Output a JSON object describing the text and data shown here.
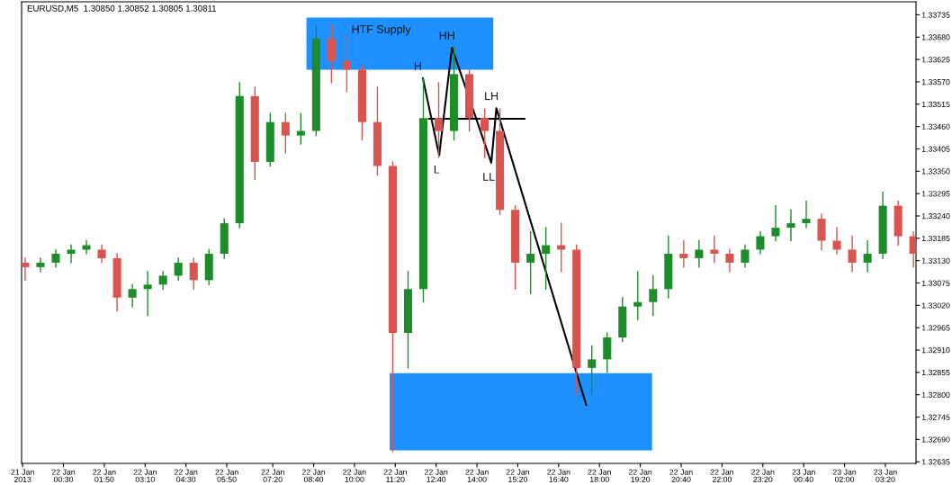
{
  "chart_data": {
    "type": "candlestick",
    "title": "EURUSD,M5  1.30850 1.30852 1.30805 1.30811",
    "x": [
      "2013-01-21T23:15",
      "2013-01-21T23:45",
      "2013-01-22T00:15",
      "2013-01-22T00:45",
      "2013-01-22T01:15",
      "2013-01-22T01:45",
      "2013-01-22T02:15",
      "2013-01-22T02:45",
      "2013-01-22T03:15",
      "2013-01-22T03:45",
      "2013-01-22T04:15",
      "2013-01-22T04:45",
      "2013-01-22T05:15",
      "2013-01-22T05:45",
      "2013-01-22T06:15",
      "2013-01-22T06:45",
      "2013-01-22T07:15",
      "2013-01-22T07:45",
      "2013-01-22T08:15",
      "2013-01-22T08:45",
      "2013-01-22T09:15",
      "2013-01-22T09:45",
      "2013-01-22T10:15",
      "2013-01-22T10:45",
      "2013-01-22T11:15",
      "2013-01-22T11:45",
      "2013-01-22T12:15",
      "2013-01-22T12:45",
      "2013-01-22T13:15",
      "2013-01-22T13:45",
      "2013-01-22T14:15",
      "2013-01-22T14:45",
      "2013-01-22T15:15",
      "2013-01-22T15:45",
      "2013-01-22T16:15",
      "2013-01-22T16:45",
      "2013-01-22T17:15",
      "2013-01-22T17:45",
      "2013-01-22T18:15",
      "2013-01-22T18:45",
      "2013-01-22T19:15",
      "2013-01-22T19:45",
      "2013-01-22T20:15",
      "2013-01-22T20:45",
      "2013-01-22T21:15",
      "2013-01-22T21:45",
      "2013-01-22T22:15",
      "2013-01-22T22:45",
      "2013-01-22T23:15",
      "2013-01-22T23:45",
      "2013-01-23T00:15",
      "2013-01-23T00:45",
      "2013-01-23T01:15",
      "2013-01-23T01:45",
      "2013-01-23T02:15",
      "2013-01-23T02:45",
      "2013-01-23T03:15",
      "2013-01-23T03:45",
      "2013-01-23T04:15"
    ],
    "ohlc": [
      [
        1.33125,
        1.33136,
        1.33082,
        1.33114
      ],
      [
        1.33114,
        1.33136,
        1.33103,
        1.33125
      ],
      [
        1.33125,
        1.33157,
        1.33114,
        1.33147
      ],
      [
        1.33147,
        1.33168,
        1.33125,
        1.33157
      ],
      [
        1.33157,
        1.33179,
        1.33147,
        1.33168
      ],
      [
        1.33157,
        1.33168,
        1.33125,
        1.33136
      ],
      [
        1.33136,
        1.33147,
        1.33006,
        1.33039
      ],
      [
        1.33039,
        1.33071,
        1.33017,
        1.3306
      ],
      [
        1.3306,
        1.33103,
        1.32995,
        1.33071
      ],
      [
        1.33071,
        1.33103,
        1.3306,
        1.33093
      ],
      [
        1.33093,
        1.33136,
        1.33082,
        1.33125
      ],
      [
        1.33125,
        1.33136,
        1.3306,
        1.33082
      ],
      [
        1.33082,
        1.33157,
        1.33071,
        1.33147
      ],
      [
        1.33147,
        1.33233,
        1.33136,
        1.33222
      ],
      [
        1.33222,
        1.33568,
        1.33211,
        1.33535
      ],
      [
        1.33535,
        1.33557,
        1.3333,
        1.33373
      ],
      [
        1.33373,
        1.33492,
        1.33363,
        1.33471
      ],
      [
        1.33471,
        1.33492,
        1.33395,
        1.33438
      ],
      [
        1.33438,
        1.33492,
        1.33417,
        1.33449
      ],
      [
        1.33449,
        1.33708,
        1.33438,
        1.33676
      ],
      [
        1.33676,
        1.33708,
        1.33568,
        1.33622
      ],
      [
        1.33622,
        1.33687,
        1.33546,
        1.336
      ],
      [
        1.336,
        1.33611,
        1.33427,
        1.33471
      ],
      [
        1.33471,
        1.33557,
        1.33341,
        1.33363
      ],
      [
        1.33363,
        1.33373,
        1.32661,
        1.32952
      ],
      [
        1.32952,
        1.33103,
        1.32866,
        1.3306
      ],
      [
        1.3306,
        1.33579,
        1.33028,
        1.33481
      ],
      [
        1.33481,
        1.33568,
        1.33384,
        1.33449
      ],
      [
        1.33449,
        1.33654,
        1.33427,
        1.33589
      ],
      [
        1.33589,
        1.336,
        1.33449,
        1.33481
      ],
      [
        1.33481,
        1.33503,
        1.33384,
        1.33449
      ],
      [
        1.33449,
        1.33503,
        1.33244,
        1.33255
      ],
      [
        1.33255,
        1.33265,
        1.3306,
        1.33125
      ],
      [
        1.33125,
        1.33201,
        1.33049,
        1.33147
      ],
      [
        1.33147,
        1.33211,
        1.3306,
        1.33168
      ],
      [
        1.33168,
        1.33222,
        1.33103,
        1.33157
      ],
      [
        1.33157,
        1.33168,
        1.32801,
        1.32866
      ],
      [
        1.32866,
        1.3292,
        1.32801,
        1.32887
      ],
      [
        1.32887,
        1.32952,
        1.32855,
        1.32941
      ],
      [
        1.32941,
        1.33039,
        1.32931,
        1.33017
      ],
      [
        1.33017,
        1.33103,
        1.32985,
        1.33028
      ],
      [
        1.33028,
        1.33093,
        1.32995,
        1.3306
      ],
      [
        1.3306,
        1.3319,
        1.33039,
        1.33147
      ],
      [
        1.33147,
        1.33179,
        1.33114,
        1.33136
      ],
      [
        1.33136,
        1.33179,
        1.33114,
        1.33157
      ],
      [
        1.33157,
        1.3319,
        1.33125,
        1.33147
      ],
      [
        1.33147,
        1.33157,
        1.33103,
        1.33125
      ],
      [
        1.33125,
        1.33168,
        1.33114,
        1.33157
      ],
      [
        1.33157,
        1.33201,
        1.33147,
        1.3319
      ],
      [
        1.3319,
        1.33265,
        1.33179,
        1.33211
      ],
      [
        1.33211,
        1.33255,
        1.33179,
        1.33222
      ],
      [
        1.33222,
        1.33276,
        1.33211,
        1.33233
      ],
      [
        1.33233,
        1.33244,
        1.33157,
        1.33179
      ],
      [
        1.33179,
        1.33211,
        1.33147,
        1.33157
      ],
      [
        1.33157,
        1.3319,
        1.33103,
        1.33125
      ],
      [
        1.33125,
        1.33179,
        1.33103,
        1.33147
      ],
      [
        1.33147,
        1.33298,
        1.33136,
        1.33265
      ],
      [
        1.33265,
        1.33276,
        1.33168,
        1.3319
      ],
      [
        1.3319,
        1.33201,
        1.33114,
        1.33147
      ]
    ],
    "colors": [
      "#d9534f",
      "#1e8c2a",
      "#1e8c2a",
      "#1e8c2a",
      "#1e8c2a",
      "#d9534f",
      "#d9534f",
      "#1e8c2a",
      "#1e8c2a",
      "#1e8c2a",
      "#1e8c2a",
      "#d9534f",
      "#1e8c2a",
      "#1e8c2a",
      "#1e8c2a",
      "#d9534f",
      "#1e8c2a",
      "#d9534f",
      "#1e8c2a",
      "#1e8c2a",
      "#d9534f",
      "#d9534f",
      "#d9534f",
      "#d9534f",
      "#d9534f",
      "#1e8c2a",
      "#1e8c2a",
      "#d9534f",
      "#1e8c2a",
      "#d9534f",
      "#d9534f",
      "#d9534f",
      "#d9534f",
      "#1e8c2a",
      "#1e8c2a",
      "#d9534f",
      "#d9534f",
      "#1e8c2a",
      "#1e8c2a",
      "#1e8c2a",
      "#1e8c2a",
      "#1e8c2a",
      "#1e8c2a",
      "#d9534f",
      "#1e8c2a",
      "#d9534f",
      "#d9534f",
      "#1e8c2a",
      "#1e8c2a",
      "#1e8c2a",
      "#1e8c2a",
      "#1e8c2a",
      "#d9534f",
      "#d9534f",
      "#d9534f",
      "#1e8c2a",
      "#1e8c2a",
      "#d9534f",
      "#d9534f"
    ],
    "series": [
      {
        "type": "line",
        "color": "#1e90ff",
        "x": [
          "2013-01-22T08:26",
          "2013-01-22T14:32"
        ],
        "values": [
          null,
          null
        ],
        "lower": [
          1.336,
          1.336
        ],
        "upper": [
          1.33728,
          1.33728
        ]
      },
      {
        "type": "line",
        "color": "#1e90ff",
        "x": [
          "2013-01-22T11:09",
          "2013-01-22T19:43"
        ],
        "values": [
          null,
          null
        ],
        "lower": [
          1.32663,
          1.32663
        ],
        "upper": [
          1.32853,
          1.32853
        ]
      },
      {
        "type": "line",
        "color": "#000000",
        "x": [
          "2013-01-22T12:14",
          "2013-01-22T12:46",
          "2013-01-22T13:11",
          "2013-01-22T14:28",
          "2013-01-22T14:38",
          "2013-01-22T17:34"
        ],
        "values": [
          1.33579,
          1.33389,
          1.33654,
          1.33371,
          1.33505,
          1.32775
        ]
      },
      {
        "type": "line",
        "color": "#000000",
        "x": [
          "2013-01-22T12:26",
          "2013-01-22T15:33"
        ],
        "values": [
          1.33479,
          1.33479
        ]
      }
    ],
    "annotations": [
      "HTF Supply",
      {
        "text": "HH",
        "x": "2013-01-22T13:11",
        "y": 1.33654
      },
      {
        "text": "H",
        "x": "2013-01-22T12:14",
        "y": 1.33579
      },
      {
        "text": "L",
        "x": "2013-01-22T12:46",
        "y": 1.33389
      },
      {
        "text": "LL",
        "x": "2013-01-22T14:28",
        "y": 1.33371
      },
      {
        "text": "LH",
        "x": "2013-01-22T14:38",
        "y": 1.33505
      }
    ],
    "xlim": [
      "2013-01-21T23:08",
      "2013-01-23T04:20"
    ],
    "xticks": [
      {
        "value": "2013-01-21T23:10",
        "label": "21 Jan 2013"
      },
      {
        "value": "2013-01-22T00:30",
        "label": "22 Jan 00:30"
      },
      {
        "value": "2013-01-22T01:50",
        "label": "22 Jan 01:50"
      },
      {
        "value": "2013-01-22T03:10",
        "label": "22 Jan 03:10"
      },
      {
        "value": "2013-01-22T04:30",
        "label": "22 Jan 04:30"
      },
      {
        "value": "2013-01-22T05:50",
        "label": "22 Jan 05:50"
      },
      {
        "value": "2013-01-22T07:20",
        "label": "22 Jan 07:20"
      },
      {
        "value": "2013-01-22T08:40",
        "label": "22 Jan 08:40"
      },
      {
        "value": "2013-01-22T10:00",
        "label": "22 Jan 10:00"
      },
      {
        "value": "2013-01-22T11:20",
        "label": "22 Jan 11:20"
      },
      {
        "value": "2013-01-22T12:40",
        "label": "22 Jan 12:40"
      },
      {
        "value": "2013-01-22T14:00",
        "label": "22 Jan 14:00"
      },
      {
        "value": "2013-01-22T15:20",
        "label": "22 Jan 15:20"
      },
      {
        "value": "2013-01-22T16:40",
        "label": "22 Jan 16:40"
      },
      {
        "value": "2013-01-22T18:00",
        "label": "22 Jan 18:00"
      },
      {
        "value": "2013-01-22T19:20",
        "label": "22 Jan 19:20"
      },
      {
        "value": "2013-01-22T20:40",
        "label": "22 Jan 20:40"
      },
      {
        "value": "2013-01-22T22:00",
        "label": "22 Jan 22:00"
      },
      {
        "value": "2013-01-22T23:20",
        "label": "22 Jan 23:20"
      },
      {
        "value": "2013-01-23T00:40",
        "label": "23 Jan 00:40"
      },
      {
        "value": "2013-01-23T02:00",
        "label": "23 Jan 02:00"
      },
      {
        "value": "2013-01-23T03:20",
        "label": "23 Jan 03:20"
      }
    ],
    "ylim": [
      1.32631,
      1.33767
    ],
    "yticks": [
      {
        "value": 1.33735,
        "label": "1.33735"
      },
      {
        "value": 1.3368,
        "label": "1.33680"
      },
      {
        "value": 1.33625,
        "label": "1.33625"
      },
      {
        "value": 1.3357,
        "label": "1.33570"
      },
      {
        "value": 1.33515,
        "label": "1.33515"
      },
      {
        "value": 1.3346,
        "label": "1.33460"
      },
      {
        "value": 1.33405,
        "label": "1.33405"
      },
      {
        "value": 1.3335,
        "label": "1.33350"
      },
      {
        "value": 1.33295,
        "label": "1.33295"
      },
      {
        "value": 1.3324,
        "label": "1.33240"
      },
      {
        "value": 1.33185,
        "label": "1.33185"
      },
      {
        "value": 1.3313,
        "label": "1.33130"
      },
      {
        "value": 1.33075,
        "label": "1.33075"
      },
      {
        "value": 1.3302,
        "label": "1.33020"
      },
      {
        "value": 1.32965,
        "label": "1.32965"
      },
      {
        "value": 1.3291,
        "label": "1.32910"
      },
      {
        "value": 1.32855,
        "label": "1.32855"
      },
      {
        "value": 1.328,
        "label": "1.32800"
      },
      {
        "value": 1.32745,
        "label": "1.32745"
      },
      {
        "value": 1.3269,
        "label": "1.32690"
      },
      {
        "value": 1.32635,
        "label": "1.32635"
      }
    ]
  }
}
